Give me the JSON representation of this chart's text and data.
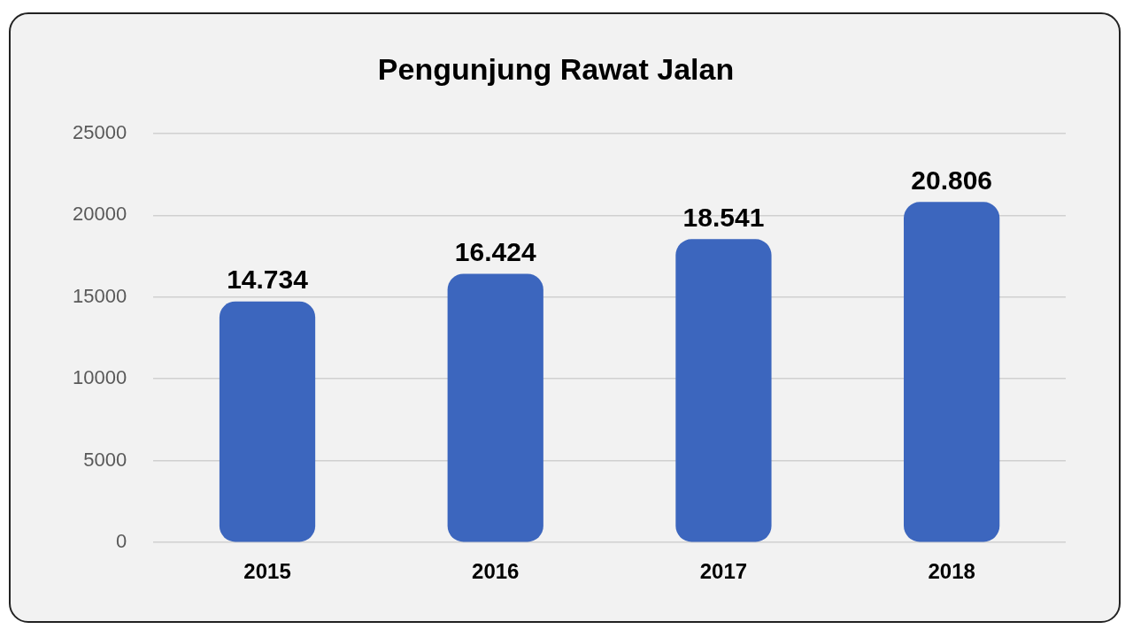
{
  "chart_data": {
    "type": "bar",
    "title": "Pengunjung Rawat Jalan",
    "categories": [
      "2015",
      "2016",
      "2017",
      "2018"
    ],
    "values": [
      14734,
      16424,
      18541,
      20806
    ],
    "value_labels": [
      "14.734",
      "16.424",
      "18.541",
      "20.806"
    ],
    "color": "#3c66be",
    "ylim": [
      0,
      25000
    ],
    "yticks": [
      0,
      5000,
      10000,
      15000,
      20000,
      25000
    ],
    "grid": "y"
  }
}
